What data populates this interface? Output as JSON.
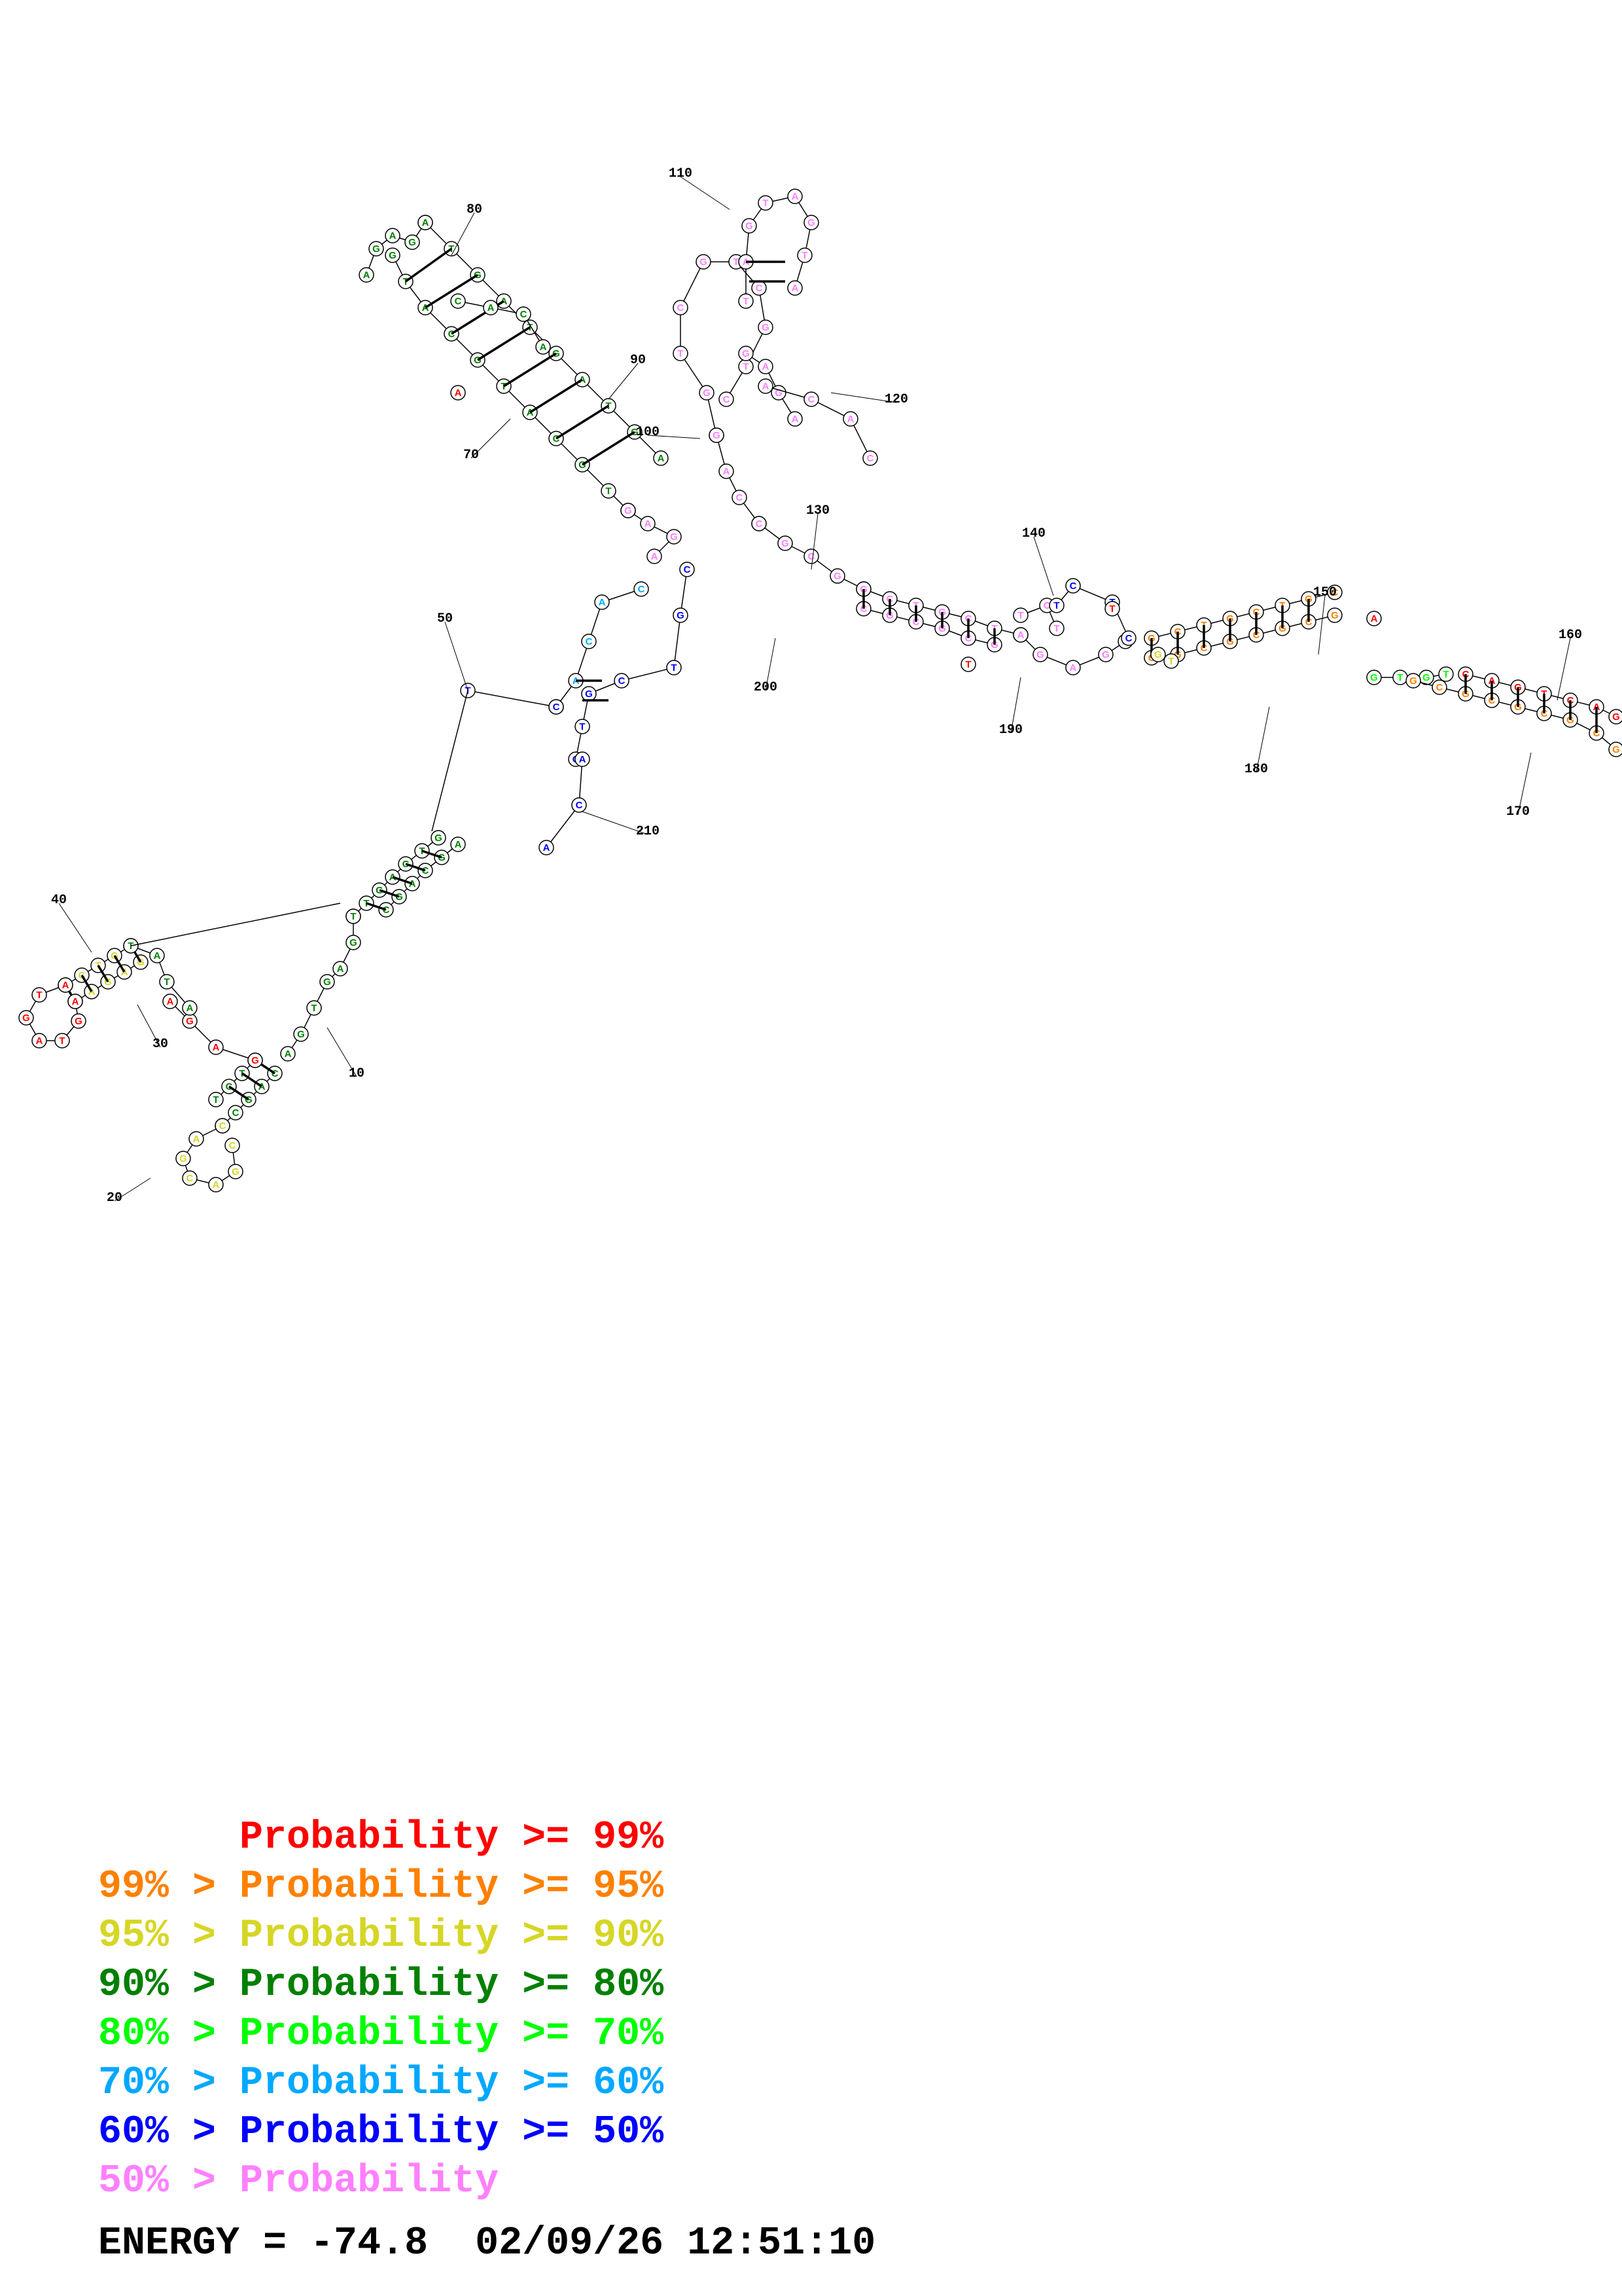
{
  "structure": {
    "positions": [
      "10",
      "20",
      "30",
      "40",
      "50",
      "70",
      "80",
      "90",
      "100",
      "110",
      "120",
      "130",
      "140",
      "150",
      "160",
      "170",
      "180",
      "190",
      "200",
      "210"
    ],
    "visible_letters": [
      "A",
      "C",
      "G",
      "T"
    ]
  },
  "legend": {
    "title_column": "Probability",
    "items": [
      {
        "range": "Probability >= 99%",
        "color": "#ff0000"
      },
      {
        "range": "99% > Probability >= 95%",
        "color": "#ff8000"
      },
      {
        "range": "95% > Probability >= 90%",
        "color": "#d6d626"
      },
      {
        "range": "90% > Probability >= 80%",
        "color": "#008000"
      },
      {
        "range": "80% > Probability >= 70%",
        "color": "#00ff00"
      },
      {
        "range": "70% > Probability >= 60%",
        "color": "#00a8ff"
      },
      {
        "range": "60% > Probability >= 50%",
        "color": "#0000ff"
      },
      {
        "range": "50% > Probability",
        "color": "#ff80ff"
      }
    ]
  },
  "footer": {
    "energy": "ENERGY = -74.8",
    "timestamp": "02/09/26 12:51:10"
  },
  "colors": {
    "p99": "#ff0000",
    "p95": "#ff8000",
    "p90": "#d6d626",
    "p80": "#008000",
    "p70": "#00ff00",
    "p60": "#00a8ff",
    "p50": "#0000ff",
    "plow": "#ff80ff"
  }
}
